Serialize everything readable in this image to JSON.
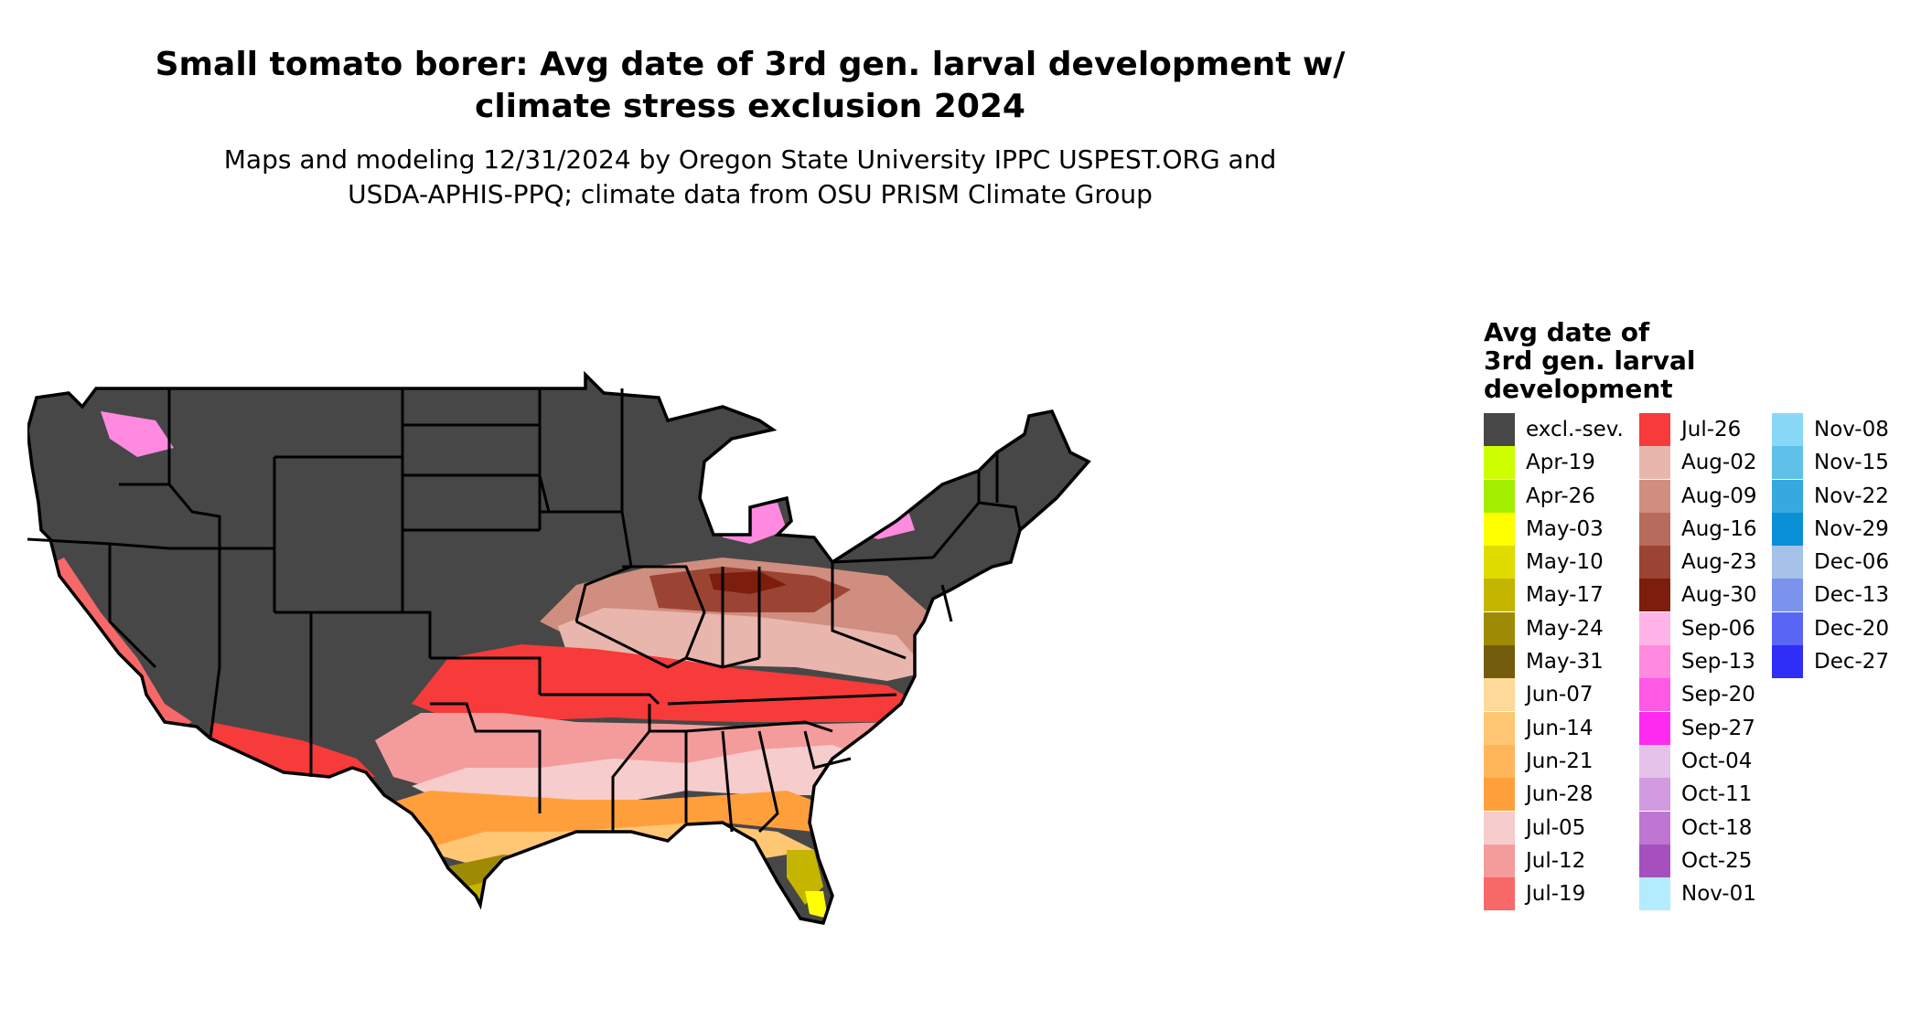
{
  "title": {
    "line1": "Small tomato borer: Avg date of 3rd gen. larval development w/",
    "line2": "climate stress exclusion 2024"
  },
  "subtitle": {
    "line1": "Maps and modeling 12/31/2024 by Oregon State University IPPC USPEST.ORG and",
    "line2": "USDA-APHIS-PPQ; climate data from OSU PRISM Climate Group"
  },
  "legend": {
    "title_lines": [
      "Avg date of",
      "3rd gen. larval",
      "development"
    ],
    "columns": [
      [
        {
          "label": "excl.-sev.",
          "color": "#474747"
        },
        {
          "label": "Apr-19",
          "color": "#ccff00"
        },
        {
          "label": "Apr-26",
          "color": "#a3ee00"
        },
        {
          "label": "May-03",
          "color": "#ffff00"
        },
        {
          "label": "May-10",
          "color": "#e0dc00"
        },
        {
          "label": "May-17",
          "color": "#c4b600"
        },
        {
          "label": "May-24",
          "color": "#9e8a05"
        },
        {
          "label": "May-31",
          "color": "#725c0c"
        },
        {
          "label": "Jun-07",
          "color": "#ffd99a"
        },
        {
          "label": "Jun-14",
          "color": "#ffc673"
        },
        {
          "label": "Jun-21",
          "color": "#ffb65a"
        },
        {
          "label": "Jun-28",
          "color": "#ff9f3c"
        },
        {
          "label": "Jul-05",
          "color": "#f6cccc"
        },
        {
          "label": "Jul-12",
          "color": "#f49c9c"
        },
        {
          "label": "Jul-19",
          "color": "#f76868"
        }
      ],
      [
        {
          "label": "Jul-26",
          "color": "#f73a3a"
        },
        {
          "label": "Aug-02",
          "color": "#e8b6ac"
        },
        {
          "label": "Aug-09",
          "color": "#cf8e7f"
        },
        {
          "label": "Aug-16",
          "color": "#b76b5c"
        },
        {
          "label": "Aug-23",
          "color": "#9c4434"
        },
        {
          "label": "Aug-30",
          "color": "#7c1d0d"
        },
        {
          "label": "Sep-06",
          "color": "#ffb3e6"
        },
        {
          "label": "Sep-13",
          "color": "#ff8ae0"
        },
        {
          "label": "Sep-20",
          "color": "#ff59e6"
        },
        {
          "label": "Sep-27",
          "color": "#ff2af0"
        },
        {
          "label": "Oct-04",
          "color": "#e4c2ea"
        },
        {
          "label": "Oct-11",
          "color": "#d29ae0"
        },
        {
          "label": "Oct-18",
          "color": "#bf76d2"
        },
        {
          "label": "Oct-25",
          "color": "#a650c0"
        },
        {
          "label": "Nov-01",
          "color": "#b3ecff"
        }
      ],
      [
        {
          "label": "Nov-08",
          "color": "#8ad8f7"
        },
        {
          "label": "Nov-15",
          "color": "#5fc0ea"
        },
        {
          "label": "Nov-22",
          "color": "#36a9e0"
        },
        {
          "label": "Nov-29",
          "color": "#0a90d6"
        },
        {
          "label": "Dec-06",
          "color": "#a6c2e8"
        },
        {
          "label": "Dec-13",
          "color": "#7c93ee"
        },
        {
          "label": "Dec-20",
          "color": "#5966f3"
        },
        {
          "label": "Dec-27",
          "color": "#2e2ef7"
        }
      ]
    ]
  }
}
